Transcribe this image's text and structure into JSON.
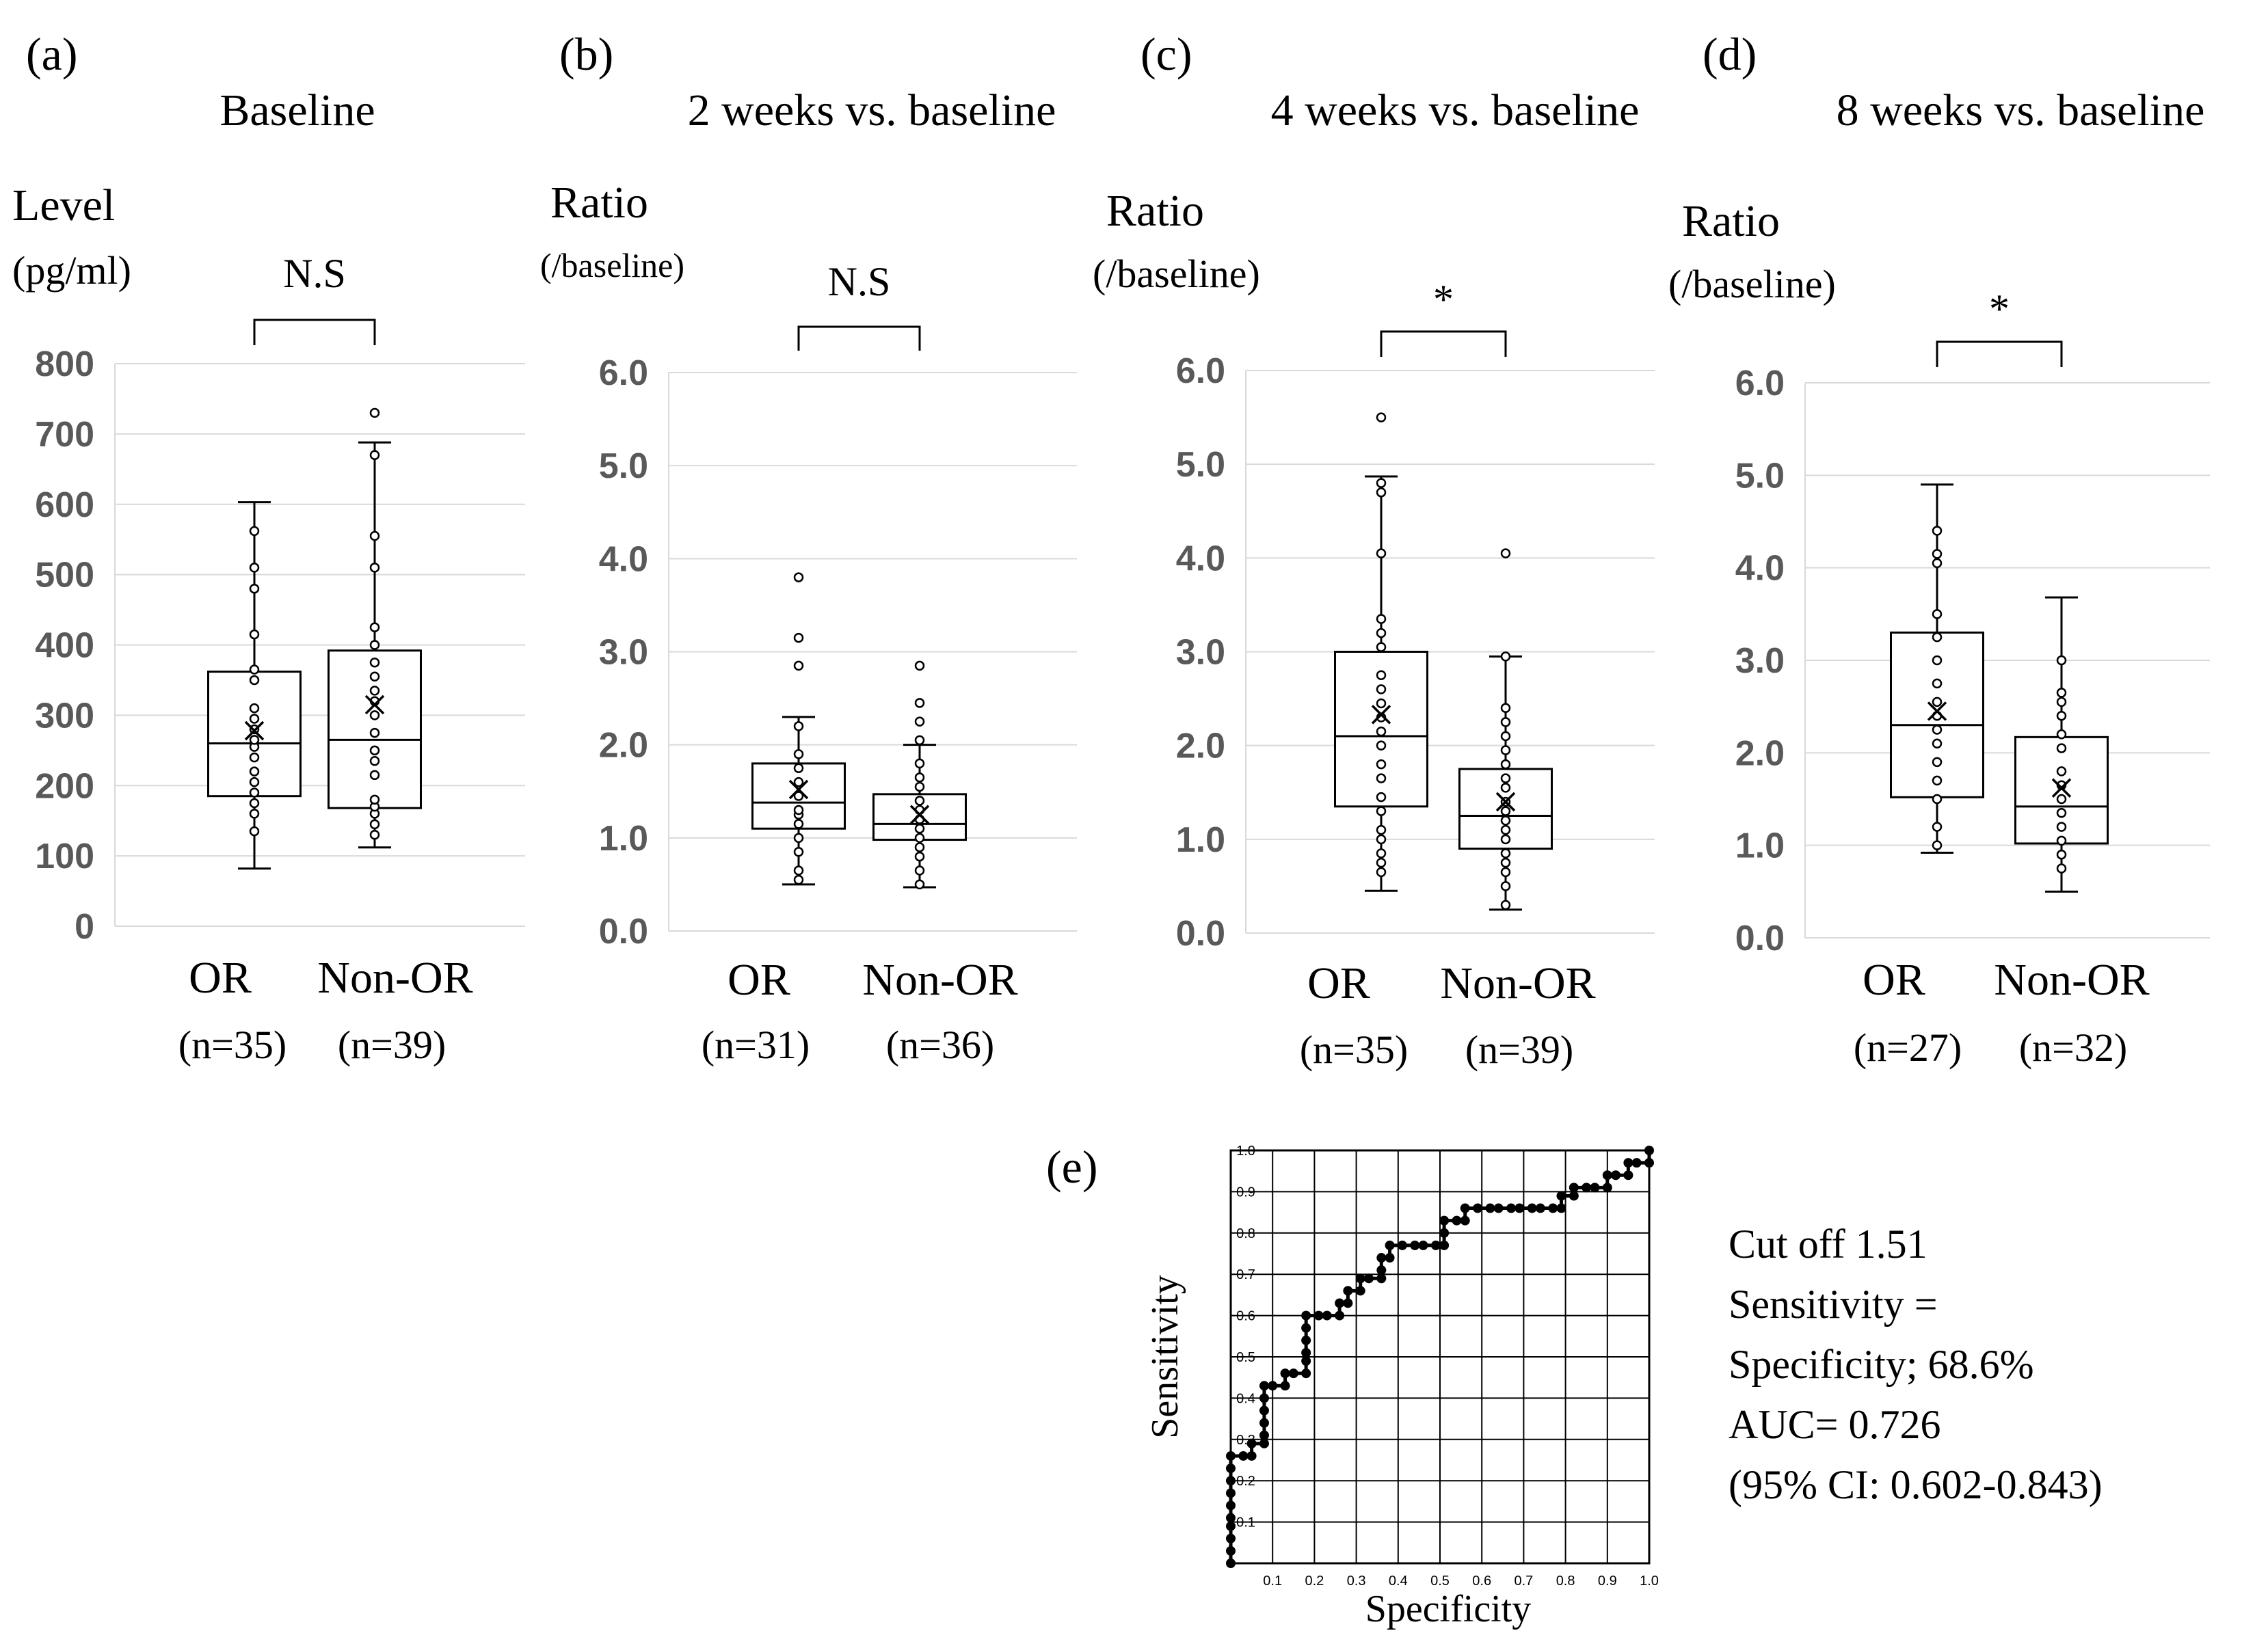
{
  "chart_data": [
    {
      "type": "box",
      "panel_label": "(a)",
      "title": "Baseline",
      "ylabel_line1": "Level",
      "ylabel_line2": "(pg/ml)",
      "significance": "N.S",
      "ylim": [
        0,
        800
      ],
      "yticks": [
        0,
        100,
        200,
        300,
        400,
        500,
        600,
        700,
        800
      ],
      "ytick_labels": [
        "0",
        "100",
        "200",
        "300",
        "400",
        "500",
        "600",
        "700",
        "800"
      ],
      "groups": [
        {
          "name": "OR",
          "n_label": "(n=35)",
          "min": 82,
          "q1": 185,
          "median": 260,
          "q3": 362,
          "max": 603,
          "mean": 278,
          "points": [
            135,
            160,
            175,
            190,
            205,
            220,
            240,
            255,
            265,
            280,
            295,
            310,
            350,
            365,
            415,
            480,
            510,
            562
          ]
        },
        {
          "name": "Non-OR",
          "n_label": "(n=39)",
          "min": 112,
          "q1": 168,
          "median": 265,
          "q3": 392,
          "max": 688,
          "mean": 315,
          "points": [
            130,
            145,
            160,
            170,
            180,
            215,
            235,
            250,
            275,
            300,
            320,
            335,
            355,
            375,
            400,
            425,
            510,
            555,
            670,
            730
          ]
        }
      ]
    },
    {
      "type": "box",
      "panel_label": "(b)",
      "title": "2 weeks vs. baseline",
      "ylabel_line1": "Ratio",
      "ylabel_line2": "(/baseline)",
      "significance": "N.S",
      "ylim": [
        0,
        6
      ],
      "yticks": [
        0,
        1,
        2,
        3,
        4,
        5,
        6
      ],
      "ytick_labels": [
        "0.0",
        "1.0",
        "2.0",
        "3.0",
        "4.0",
        "5.0",
        "6.0"
      ],
      "groups": [
        {
          "name": "OR",
          "n_label": "(n=31)",
          "min": 0.5,
          "q1": 1.1,
          "median": 1.38,
          "q3": 1.8,
          "max": 2.3,
          "mean": 1.52,
          "points": [
            0.55,
            0.65,
            0.85,
            1.0,
            1.15,
            1.25,
            1.3,
            1.45,
            1.6,
            1.75,
            1.9,
            2.2,
            2.85,
            3.15,
            3.8
          ]
        },
        {
          "name": "Non-OR",
          "n_label": "(n=36)",
          "min": 0.47,
          "q1": 0.98,
          "median": 1.15,
          "q3": 1.47,
          "max": 2.0,
          "mean": 1.25,
          "points": [
            0.5,
            0.65,
            0.8,
            0.9,
            1.0,
            1.1,
            1.2,
            1.3,
            1.4,
            1.55,
            1.65,
            1.8,
            2.05,
            2.25,
            2.45,
            2.85
          ]
        }
      ]
    },
    {
      "type": "box",
      "panel_label": "(c)",
      "title": "4 weeks vs. baseline",
      "ylabel_line1": "Ratio",
      "ylabel_line2": "(/baseline)",
      "significance": "*",
      "ylim": [
        0,
        6
      ],
      "yticks": [
        0,
        1,
        2,
        3,
        4,
        5,
        6
      ],
      "ytick_labels": [
        "0.0",
        "1.0",
        "2.0",
        "3.0",
        "4.0",
        "5.0",
        "6.0"
      ],
      "groups": [
        {
          "name": "OR",
          "n_label": "(n=35)",
          "min": 0.45,
          "q1": 1.35,
          "median": 2.1,
          "q3": 3.0,
          "max": 4.87,
          "mean": 2.33,
          "points": [
            0.65,
            0.75,
            0.85,
            1.0,
            1.1,
            1.3,
            1.45,
            1.65,
            1.8,
            2.0,
            2.15,
            2.3,
            2.45,
            2.6,
            2.75,
            3.05,
            3.2,
            3.35,
            4.05,
            4.7,
            4.8,
            5.5
          ]
        },
        {
          "name": "Non-OR",
          "n_label": "(n=39)",
          "min": 0.25,
          "q1": 0.9,
          "median": 1.25,
          "q3": 1.75,
          "max": 2.95,
          "mean": 1.4,
          "points": [
            0.3,
            0.5,
            0.65,
            0.75,
            0.85,
            1.0,
            1.1,
            1.2,
            1.3,
            1.4,
            1.55,
            1.65,
            1.8,
            1.95,
            2.1,
            2.25,
            2.4,
            2.95,
            4.05
          ]
        }
      ]
    },
    {
      "type": "box",
      "panel_label": "(d)",
      "title": "8 weeks vs. baseline",
      "ylabel_line1": "Ratio",
      "ylabel_line2": "(/baseline)",
      "significance": "*",
      "ylim": [
        0,
        6
      ],
      "yticks": [
        0,
        1,
        2,
        3,
        4,
        5,
        6
      ],
      "ytick_labels": [
        "0.0",
        "1.0",
        "2.0",
        "3.0",
        "4.0",
        "5.0",
        "6.0"
      ],
      "groups": [
        {
          "name": "OR",
          "n_label": "(n=27)",
          "min": 0.92,
          "q1": 1.52,
          "median": 2.3,
          "q3": 3.3,
          "max": 4.9,
          "mean": 2.45,
          "points": [
            1.0,
            1.2,
            1.5,
            1.7,
            1.9,
            2.1,
            2.25,
            2.4,
            2.55,
            2.75,
            3.0,
            3.25,
            3.5,
            4.05,
            4.15,
            4.4
          ]
        },
        {
          "name": "Non-OR",
          "n_label": "(n=32)",
          "min": 0.5,
          "q1": 1.02,
          "median": 1.42,
          "q3": 2.17,
          "max": 3.68,
          "mean": 1.62,
          "points": [
            0.75,
            0.9,
            1.05,
            1.2,
            1.35,
            1.5,
            1.65,
            1.8,
            2.05,
            2.2,
            2.4,
            2.55,
            2.65,
            3.0
          ]
        }
      ]
    },
    {
      "type": "line",
      "panel_label": "(e)",
      "subtype": "roc",
      "xlabel": "Specificity",
      "ylabel": "Sensitivity",
      "xlim": [
        0,
        1
      ],
      "ylim": [
        0,
        1
      ],
      "x_tick_labels": [
        "0.1",
        "0.2",
        "0.3",
        "0.4",
        "0.5",
        "0.6",
        "0.7",
        "0.8",
        "0.9",
        "1.0"
      ],
      "y_tick_labels": [
        "0.1",
        "0.2",
        "0.3",
        "0.4",
        "0.5",
        "0.6",
        "0.7",
        "0.8",
        "0.9",
        "1.0"
      ],
      "points": [
        [
          0,
          0
        ],
        [
          0,
          0.03
        ],
        [
          0,
          0.06
        ],
        [
          0,
          0.09
        ],
        [
          0,
          0.11
        ],
        [
          0,
          0.14
        ],
        [
          0,
          0.17
        ],
        [
          0,
          0.2
        ],
        [
          0,
          0.23
        ],
        [
          0,
          0.26
        ],
        [
          0.03,
          0.26
        ],
        [
          0.05,
          0.26
        ],
        [
          0.05,
          0.29
        ],
        [
          0.08,
          0.29
        ],
        [
          0.08,
          0.31
        ],
        [
          0.08,
          0.34
        ],
        [
          0.08,
          0.37
        ],
        [
          0.08,
          0.4
        ],
        [
          0.08,
          0.43
        ],
        [
          0.1,
          0.43
        ],
        [
          0.13,
          0.43
        ],
        [
          0.13,
          0.46
        ],
        [
          0.15,
          0.46
        ],
        [
          0.18,
          0.46
        ],
        [
          0.18,
          0.49
        ],
        [
          0.18,
          0.51
        ],
        [
          0.18,
          0.54
        ],
        [
          0.18,
          0.57
        ],
        [
          0.18,
          0.6
        ],
        [
          0.21,
          0.6
        ],
        [
          0.23,
          0.6
        ],
        [
          0.26,
          0.6
        ],
        [
          0.26,
          0.63
        ],
        [
          0.28,
          0.63
        ],
        [
          0.28,
          0.66
        ],
        [
          0.31,
          0.66
        ],
        [
          0.31,
          0.69
        ],
        [
          0.33,
          0.69
        ],
        [
          0.36,
          0.69
        ],
        [
          0.36,
          0.71
        ],
        [
          0.36,
          0.74
        ],
        [
          0.38,
          0.74
        ],
        [
          0.38,
          0.77
        ],
        [
          0.41,
          0.77
        ],
        [
          0.44,
          0.77
        ],
        [
          0.46,
          0.77
        ],
        [
          0.49,
          0.77
        ],
        [
          0.51,
          0.77
        ],
        [
          0.51,
          0.8
        ],
        [
          0.51,
          0.83
        ],
        [
          0.54,
          0.83
        ],
        [
          0.56,
          0.83
        ],
        [
          0.56,
          0.86
        ],
        [
          0.59,
          0.86
        ],
        [
          0.62,
          0.86
        ],
        [
          0.64,
          0.86
        ],
        [
          0.67,
          0.86
        ],
        [
          0.69,
          0.86
        ],
        [
          0.72,
          0.86
        ],
        [
          0.74,
          0.86
        ],
        [
          0.77,
          0.86
        ],
        [
          0.79,
          0.86
        ],
        [
          0.79,
          0.89
        ],
        [
          0.82,
          0.89
        ],
        [
          0.82,
          0.91
        ],
        [
          0.85,
          0.91
        ],
        [
          0.87,
          0.91
        ],
        [
          0.9,
          0.91
        ],
        [
          0.9,
          0.94
        ],
        [
          0.92,
          0.94
        ],
        [
          0.95,
          0.94
        ],
        [
          0.95,
          0.97
        ],
        [
          0.97,
          0.97
        ],
        [
          1.0,
          0.97
        ],
        [
          1.0,
          1.0
        ]
      ]
    }
  ],
  "roc_annotation": {
    "line1": "Cut off 1.51",
    "line2": "Sensitivity  =",
    "line3": "Specificity;  68.6%",
    "line4": "AUC= 0.726",
    "line5": "(95% CI: 0.602-0.843)"
  }
}
